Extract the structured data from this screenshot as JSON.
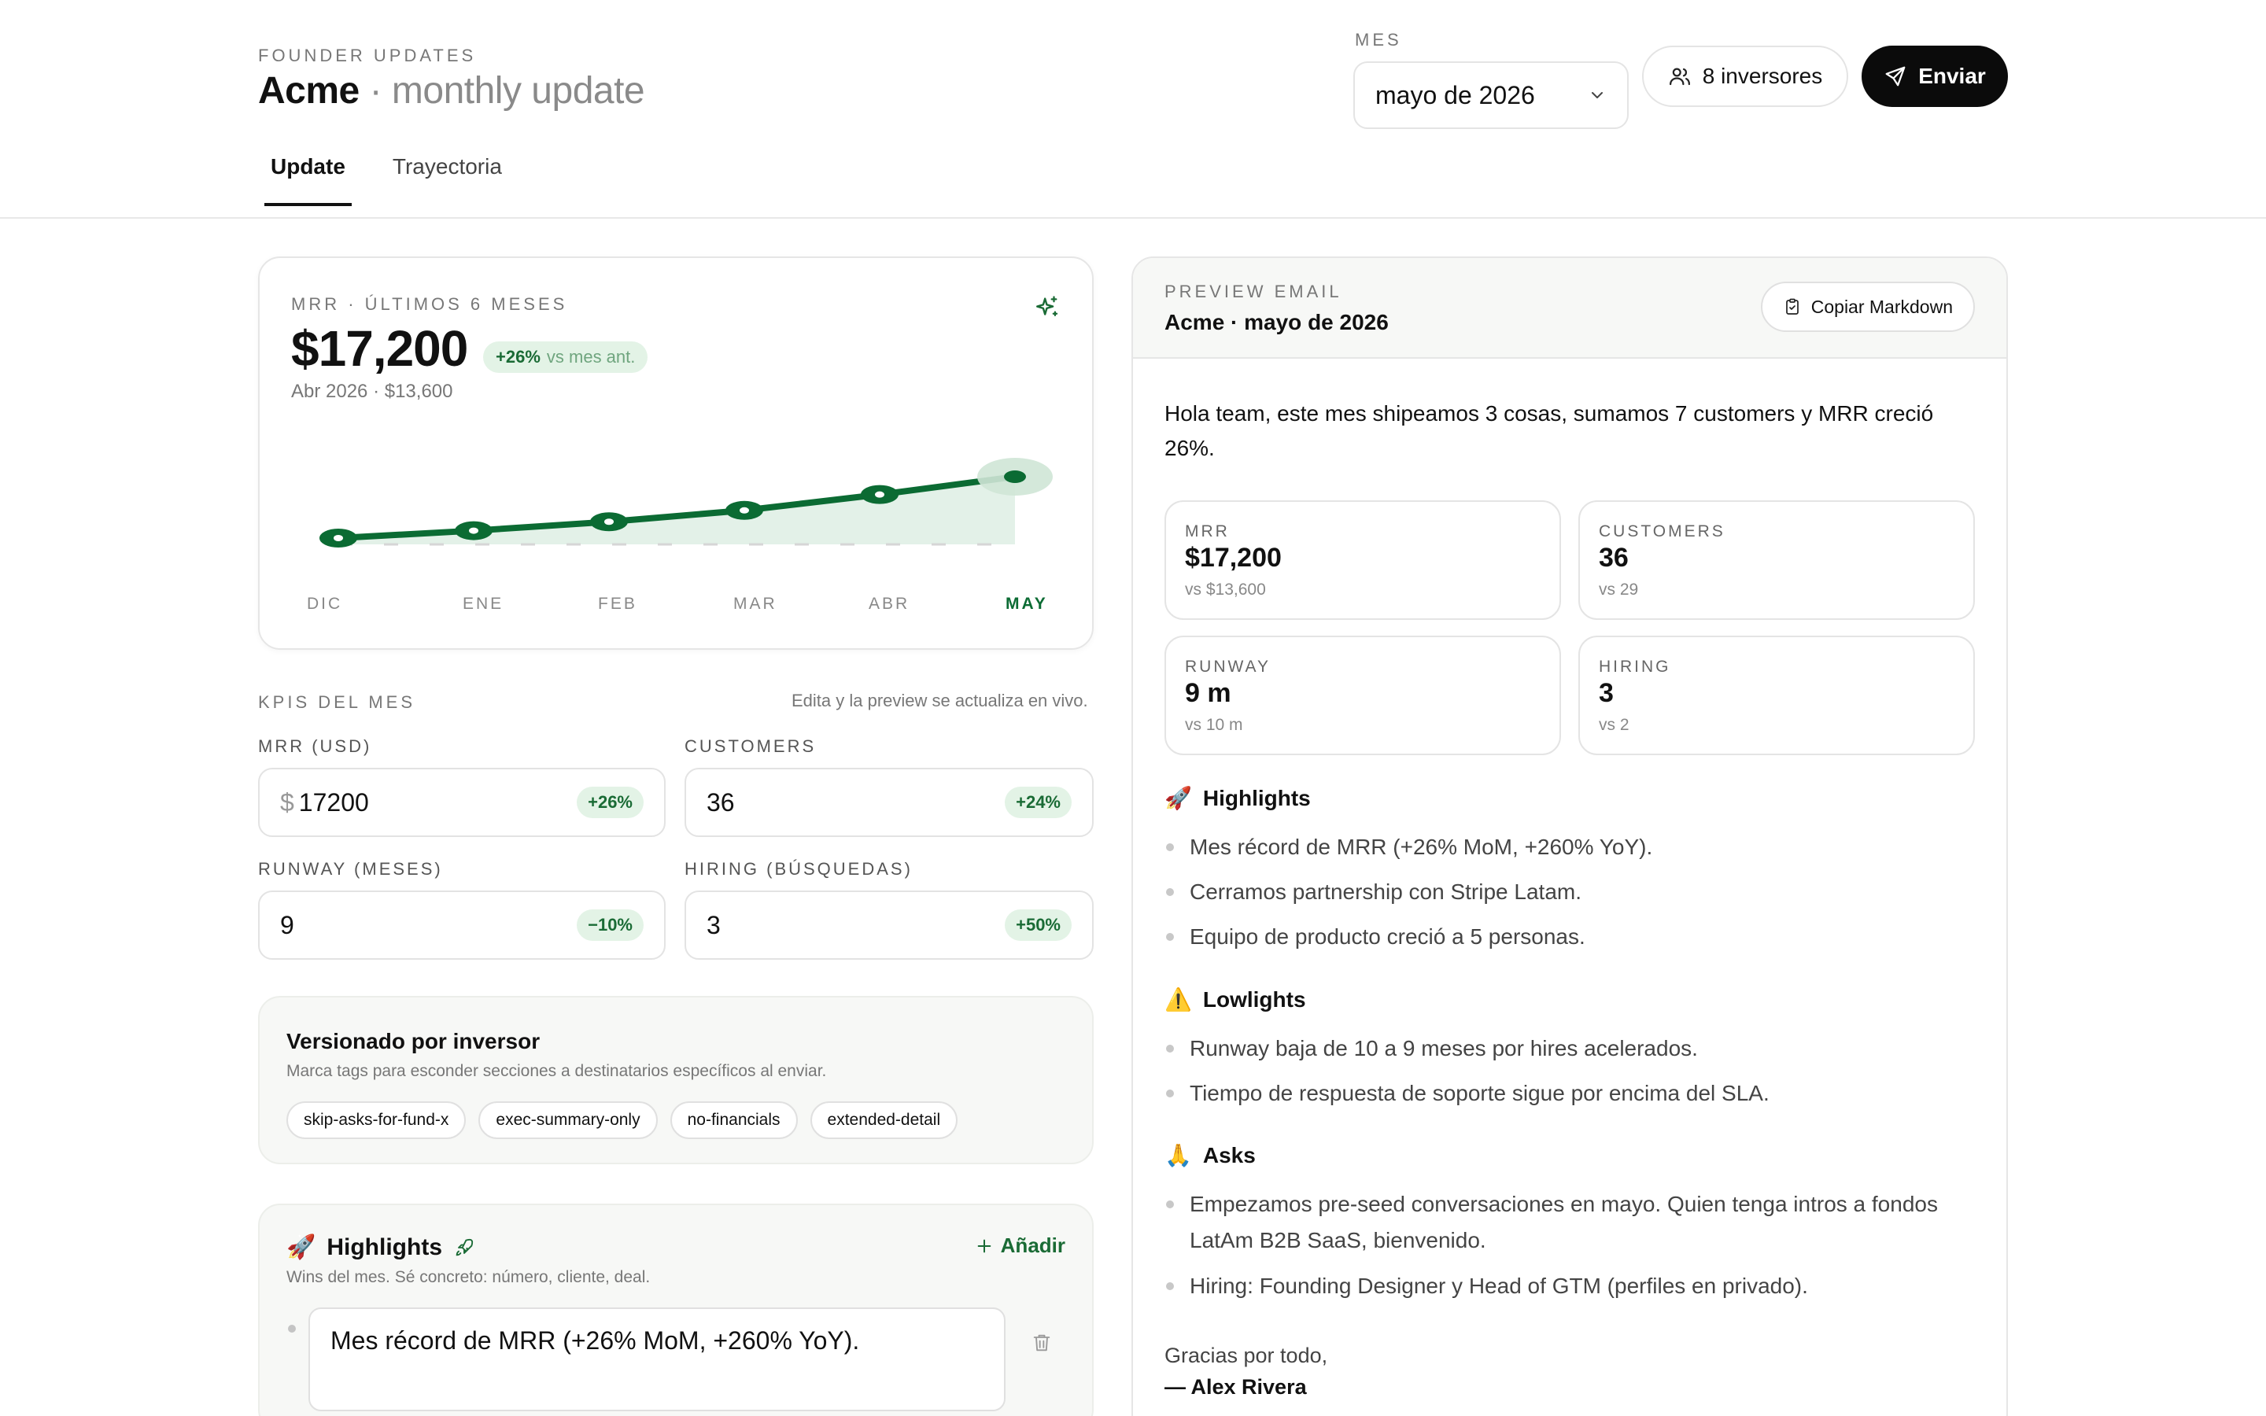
{
  "header": {
    "eyebrow": "FOUNDER UPDATES",
    "company": "Acme",
    "title_suffix": "· monthly update",
    "mes_label": "MES",
    "mes_value": "mayo de 2026",
    "investors_button": "8 inversores",
    "send_button": "Enviar",
    "icons": {
      "investors": "users-icon",
      "send": "send-icon",
      "select": "chevron-down-icon"
    }
  },
  "tabs": [
    {
      "label": "Update",
      "active": true
    },
    {
      "label": "Trayectoria",
      "active": false
    }
  ],
  "mrr_card": {
    "eyebrow": "MRR · ÚLTIMOS 6 MESES",
    "value": "$17,200",
    "delta": "+26%",
    "delta_suffix": "vs mes ant.",
    "previous": "Abr 2026 · $13,600",
    "icon": "sparkles-icon"
  },
  "chart_data": {
    "type": "line",
    "categories": [
      "DIC",
      "ENE",
      "FEB",
      "MAR",
      "ABR",
      "MAY"
    ],
    "series": [
      {
        "values": [
          4800,
          6300,
          8100,
          10400,
          13600,
          17200
        ]
      }
    ],
    "highlight_category": "MAY",
    "line_color": "#0b6b33",
    "area_color": "#e3f1e8",
    "ylim": [
      0,
      32000
    ],
    "grid": false,
    "title": "",
    "xlabel": "",
    "ylabel": ""
  },
  "kpis": {
    "eyebrow": "KPIS DEL MES",
    "hint": "Edita y la preview se actualiza en vivo.",
    "fields": {
      "mrr": {
        "label": "MRR (USD)",
        "currency": "$",
        "value": "17200",
        "delta": "+26%"
      },
      "customers": {
        "label": "CUSTOMERS",
        "value": "36",
        "delta": "+24%"
      },
      "runway": {
        "label": "RUNWAY (MESES)",
        "value": "9",
        "delta": "−10%"
      },
      "hiring": {
        "label": "HIRING (BÚSQUEDAS)",
        "value": "3",
        "delta": "+50%"
      }
    }
  },
  "versioning": {
    "title": "Versionado por inversor",
    "subtitle": "Marca tags para esconder secciones a destinatarios específicos al enviar.",
    "tags": [
      "skip-asks-for-fund-x",
      "exec-summary-only",
      "no-financials",
      "extended-detail"
    ]
  },
  "highlights_editor": {
    "emoji": "🚀",
    "title": "Highlights",
    "add_label": "Añadir",
    "subtitle": "Wins del mes. Sé concreto: número, cliente, deal.",
    "items": [
      "Mes récord de MRR (+26% MoM, +260% YoY)."
    ]
  },
  "preview": {
    "eyebrow": "PREVIEW EMAIL",
    "subject": "Acme · mayo de 2026",
    "copy_button": "Copiar Markdown",
    "intro": "Hola team, este mes shipeamos 3 cosas, sumamos 7 customers y MRR creció 26%.",
    "stats": [
      {
        "label": "MRR",
        "value": "$17,200",
        "prev": "vs $13,600"
      },
      {
        "label": "CUSTOMERS",
        "value": "36",
        "prev": "vs 29"
      },
      {
        "label": "RUNWAY",
        "value": "9 m",
        "prev": "vs 10 m"
      },
      {
        "label": "HIRING",
        "value": "3",
        "prev": "vs 2"
      }
    ],
    "sections": [
      {
        "emoji": "🚀",
        "title": "Highlights",
        "items": [
          "Mes récord de MRR (+26% MoM, +260% YoY).",
          "Cerramos partnership con Stripe Latam.",
          "Equipo de producto creció a 5 personas."
        ]
      },
      {
        "emoji": "⚠️",
        "title": "Lowlights",
        "items": [
          "Runway baja de 10 a 9 meses por hires acelerados.",
          "Tiempo de respuesta de soporte sigue por encima del SLA."
        ]
      },
      {
        "emoji": "🙏",
        "title": "Asks",
        "items": [
          "Empezamos pre-seed conversaciones en mayo. Quien tenga intros a fondos",
          "LatAm B2B SaaS, bienvenido.",
          "Hiring: Founding Designer y Head of GTM (perfiles en privado)."
        ]
      }
    ],
    "signoff": "Gracias por todo,",
    "signer": "— Alex Rivera"
  }
}
